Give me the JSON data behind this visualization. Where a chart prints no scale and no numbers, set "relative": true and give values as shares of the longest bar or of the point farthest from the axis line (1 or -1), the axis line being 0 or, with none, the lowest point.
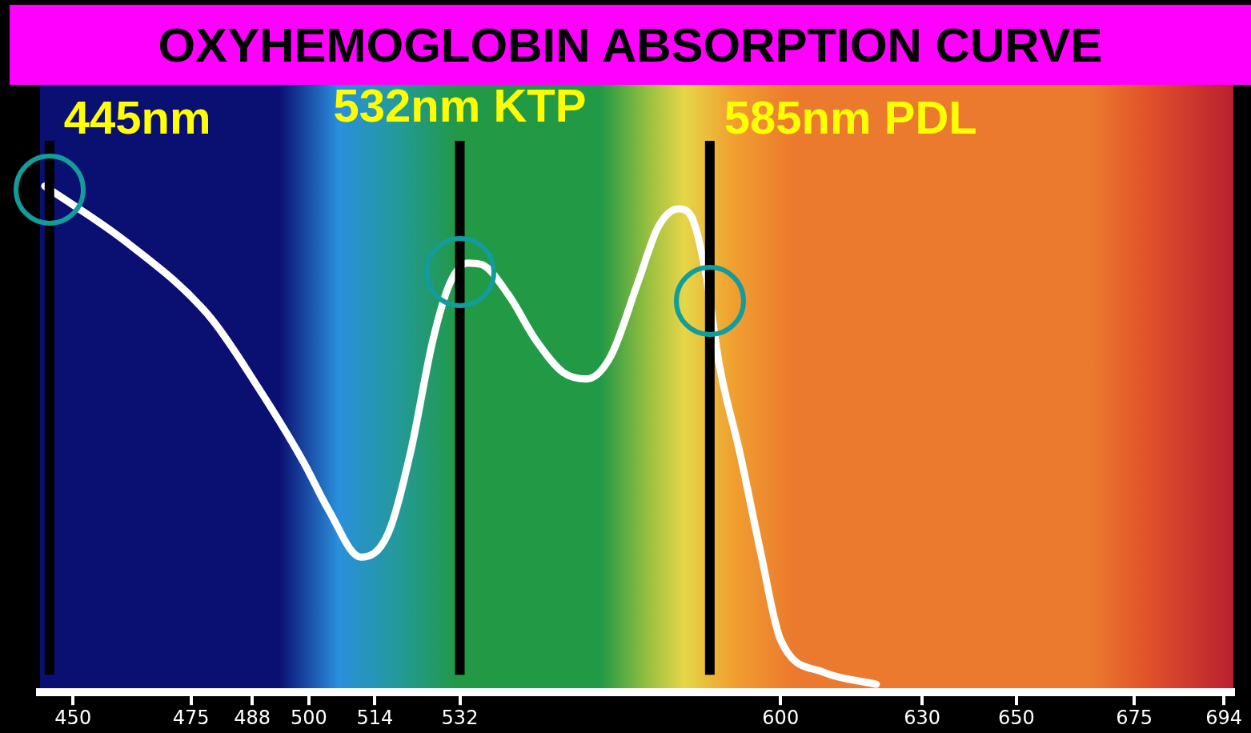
{
  "chart_data": {
    "type": "line",
    "title": "OXYHEMOGLOBIN ABSORPTION CURVE",
    "relative": true,
    "x": [
      444,
      461.5,
      478.8,
      489.4,
      498.8,
      504.2,
      511,
      516.7,
      521.5,
      526.3,
      529.9,
      533.7,
      536.6,
      542.4,
      548.1,
      553.9,
      558.9,
      564,
      569.7,
      574.1,
      578.4,
      581.3,
      584.2,
      587,
      591.4,
      595.7,
      600,
      609,
      620.3
    ],
    "series": [
      {
        "color": "#ffffff",
        "values": [
          1.0,
          0.888,
          0.744,
          0.6,
          0.456,
          0.36,
          0.267,
          0.312,
          0.472,
          0.696,
          0.808,
          0.848,
          0.845,
          0.784,
          0.696,
          0.632,
          0.619,
          0.664,
          0.808,
          0.92,
          0.955,
          0.936,
          0.824,
          0.648,
          0.472,
          0.28,
          0.104,
          0.04,
          0.016
        ]
      }
    ],
    "xlim": [
      443,
      696
    ],
    "xticks": [
      450,
      475,
      488,
      500,
      514,
      532,
      600,
      630,
      650,
      675,
      694
    ],
    "marker": "none",
    "line_style": "solid",
    "tick_labels": "x",
    "ref_lines": [
      {
        "axis": "x",
        "value": 445,
        "label": "445nm",
        "color": "#000000"
      },
      {
        "axis": "x",
        "value": 532,
        "label": "532nm KTP",
        "color": "#000000"
      },
      {
        "axis": "x",
        "value": 585,
        "label": "585nm PDL",
        "color": "#000000"
      }
    ]
  }
}
